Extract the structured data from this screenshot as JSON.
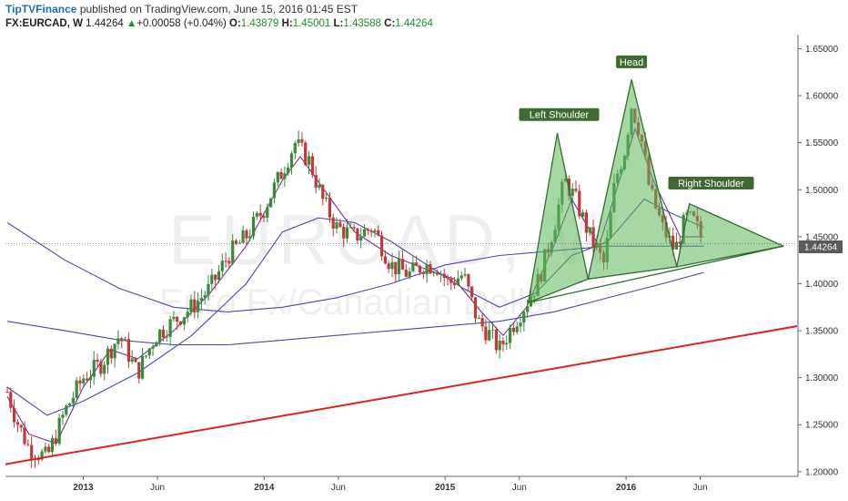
{
  "header": {
    "brand": "TipTVFinance",
    "published_text": "published on TradingView.com, June 15, 2016 01:45 EST",
    "symbol": "FX:EURCAD, W",
    "last": "1.44264",
    "change": "+0.00058 (+0.04%)",
    "open_label": "O:",
    "open": "1.43879",
    "high_label": "H:",
    "high": "1.45001",
    "low_label": "L:",
    "low": "1.43588",
    "close_label": "C:",
    "close": "1.44264"
  },
  "watermark": {
    "symbol": "EURCAD, W",
    "description": "Euro Fx/Canadian Dollar"
  },
  "price_tag": "1.44264",
  "colors": {
    "up": "#3a8a3a",
    "down": "#c0393b",
    "ma_fast": "#7b2e8e",
    "ma_slow": "#4a4aa8",
    "trend": "#e02020",
    "pattern_fill": "#5cb85c",
    "pattern_stroke": "#2f6e2f",
    "label_bg": "#3f6b32"
  },
  "chart_data": {
    "type": "candlestick",
    "title": "",
    "xlabel": "",
    "ylabel": "",
    "ylim": [
      1.195,
      1.665
    ],
    "xlim": [
      2012.57,
      2016.95
    ],
    "y_ticks": [
      "1.20000",
      "1.25000",
      "1.30000",
      "1.35000",
      "1.40000",
      "1.45000",
      "1.50000",
      "1.55000",
      "1.60000",
      "1.65000"
    ],
    "x_ticks": [
      {
        "label": "2013",
        "t": 2013.0,
        "bold": true
      },
      {
        "label": "Jun",
        "t": 2013.41,
        "bold": false
      },
      {
        "label": "2014",
        "t": 2014.0,
        "bold": true
      },
      {
        "label": "Jun",
        "t": 2014.41,
        "bold": false
      },
      {
        "label": "2015",
        "t": 2015.0,
        "bold": true
      },
      {
        "label": "Jun",
        "t": 2015.41,
        "bold": false
      },
      {
        "label": "2016",
        "t": 2016.0,
        "bold": true
      },
      {
        "label": "Jun",
        "t": 2016.41,
        "bold": false
      }
    ],
    "price_anchors": [
      [
        2012.58,
        1.285
      ],
      [
        2012.63,
        1.255
      ],
      [
        2012.7,
        1.225
      ],
      [
        2012.8,
        1.215
      ],
      [
        2012.9,
        1.265
      ],
      [
        2013.0,
        1.3
      ],
      [
        2013.1,
        1.315
      ],
      [
        2013.2,
        1.345
      ],
      [
        2013.3,
        1.305
      ],
      [
        2013.4,
        1.345
      ],
      [
        2013.5,
        1.36
      ],
      [
        2013.6,
        1.375
      ],
      [
        2013.7,
        1.395
      ],
      [
        2013.8,
        1.43
      ],
      [
        2013.9,
        1.45
      ],
      [
        2014.0,
        1.48
      ],
      [
        2014.1,
        1.52
      ],
      [
        2014.17,
        1.55
      ],
      [
        2014.25,
        1.53
      ],
      [
        2014.32,
        1.49
      ],
      [
        2014.4,
        1.46
      ],
      [
        2014.5,
        1.45
      ],
      [
        2014.6,
        1.46
      ],
      [
        2014.7,
        1.42
      ],
      [
        2014.8,
        1.41
      ],
      [
        2014.88,
        1.42
      ],
      [
        2014.95,
        1.42
      ],
      [
        2015.02,
        1.4
      ],
      [
        2015.1,
        1.41
      ],
      [
        2015.18,
        1.36
      ],
      [
        2015.25,
        1.345
      ],
      [
        2015.3,
        1.33
      ],
      [
        2015.37,
        1.355
      ],
      [
        2015.45,
        1.38
      ],
      [
        2015.52,
        1.405
      ],
      [
        2015.6,
        1.46
      ],
      [
        2015.66,
        1.51
      ],
      [
        2015.72,
        1.49
      ],
      [
        2015.8,
        1.45
      ],
      [
        2015.88,
        1.42
      ],
      [
        2015.94,
        1.51
      ],
      [
        2015.99,
        1.54
      ],
      [
        2016.03,
        1.59
      ],
      [
        2016.08,
        1.56
      ],
      [
        2016.13,
        1.5
      ],
      [
        2016.2,
        1.46
      ],
      [
        2016.27,
        1.435
      ],
      [
        2016.33,
        1.47
      ],
      [
        2016.38,
        1.465
      ],
      [
        2016.43,
        1.443
      ]
    ],
    "series": [
      {
        "name": "",
        "color": "#7b2e8e",
        "points": [
          [
            2012.58,
            1.28
          ],
          [
            2012.7,
            1.24
          ],
          [
            2012.85,
            1.23
          ],
          [
            2013.0,
            1.29
          ],
          [
            2013.15,
            1.33
          ],
          [
            2013.3,
            1.32
          ],
          [
            2013.5,
            1.35
          ],
          [
            2013.7,
            1.39
          ],
          [
            2013.9,
            1.44
          ],
          [
            2014.1,
            1.51
          ],
          [
            2014.2,
            1.535
          ],
          [
            2014.35,
            1.495
          ],
          [
            2014.5,
            1.455
          ],
          [
            2014.7,
            1.43
          ],
          [
            2014.9,
            1.415
          ],
          [
            2015.05,
            1.405
          ],
          [
            2015.2,
            1.37
          ],
          [
            2015.32,
            1.345
          ],
          [
            2015.45,
            1.375
          ],
          [
            2015.6,
            1.44
          ],
          [
            2015.7,
            1.49
          ],
          [
            2015.85,
            1.44
          ],
          [
            2015.98,
            1.52
          ],
          [
            2016.05,
            1.565
          ],
          [
            2016.15,
            1.51
          ],
          [
            2016.3,
            1.45
          ],
          [
            2016.43,
            1.45
          ]
        ]
      },
      {
        "name": "",
        "color": "#4a4aa8",
        "points": [
          [
            2012.58,
            1.29
          ],
          [
            2012.8,
            1.26
          ],
          [
            2013.0,
            1.275
          ],
          [
            2013.3,
            1.305
          ],
          [
            2013.6,
            1.345
          ],
          [
            2013.9,
            1.4
          ],
          [
            2014.1,
            1.455
          ],
          [
            2014.3,
            1.47
          ],
          [
            2014.5,
            1.465
          ],
          [
            2014.7,
            1.445
          ],
          [
            2014.9,
            1.42
          ],
          [
            2015.1,
            1.395
          ],
          [
            2015.3,
            1.375
          ],
          [
            2015.5,
            1.39
          ],
          [
            2015.7,
            1.43
          ],
          [
            2015.9,
            1.445
          ],
          [
            2016.1,
            1.49
          ],
          [
            2016.25,
            1.475
          ],
          [
            2016.43,
            1.46
          ]
        ]
      },
      {
        "name": "",
        "color": "#4a4aa8",
        "points": [
          [
            2012.58,
            1.465
          ],
          [
            2012.9,
            1.425
          ],
          [
            2013.2,
            1.395
          ],
          [
            2013.5,
            1.375
          ],
          [
            2013.8,
            1.37
          ],
          [
            2014.1,
            1.375
          ],
          [
            2014.4,
            1.385
          ],
          [
            2014.7,
            1.4
          ],
          [
            2015.0,
            1.42
          ],
          [
            2015.3,
            1.43
          ],
          [
            2015.6,
            1.435
          ],
          [
            2015.9,
            1.44
          ],
          [
            2016.2,
            1.44
          ],
          [
            2016.43,
            1.44
          ]
        ]
      },
      {
        "name": "",
        "color": "#4a4aa8",
        "points": [
          [
            2012.58,
            1.36
          ],
          [
            2012.9,
            1.35
          ],
          [
            2013.2,
            1.34
          ],
          [
            2013.5,
            1.335
          ],
          [
            2013.8,
            1.335
          ],
          [
            2014.1,
            1.34
          ],
          [
            2014.4,
            1.345
          ],
          [
            2014.7,
            1.35
          ],
          [
            2015.0,
            1.355
          ],
          [
            2015.3,
            1.36
          ],
          [
            2015.6,
            1.37
          ],
          [
            2015.9,
            1.385
          ],
          [
            2016.2,
            1.4
          ],
          [
            2016.43,
            1.412
          ]
        ]
      }
    ],
    "trendline": [
      [
        2012.57,
        1.208
      ],
      [
        2016.95,
        1.355
      ]
    ],
    "pattern": {
      "left_shoulder": [
        [
          2015.46,
          1.38
        ],
        [
          2015.62,
          1.56
        ],
        [
          2015.79,
          1.405
        ]
      ],
      "head": [
        [
          2015.79,
          1.405
        ],
        [
          2016.03,
          1.617
        ],
        [
          2016.28,
          1.418
        ]
      ],
      "right_shoulder": [
        [
          2016.28,
          1.418
        ],
        [
          2016.35,
          1.485
        ],
        [
          2016.87,
          1.44
        ]
      ],
      "neckline": [
        [
          2015.46,
          1.38
        ],
        [
          2016.87,
          1.44
        ]
      ]
    },
    "annotations": [
      {
        "text": "Left Shoulder",
        "t": 2015.63,
        "y": 1.58
      },
      {
        "text": "Head",
        "t": 2016.03,
        "y": 1.636
      },
      {
        "text": "Right Shoulder",
        "t": 2016.47,
        "y": 1.507
      }
    ],
    "current_price": 1.44264
  }
}
